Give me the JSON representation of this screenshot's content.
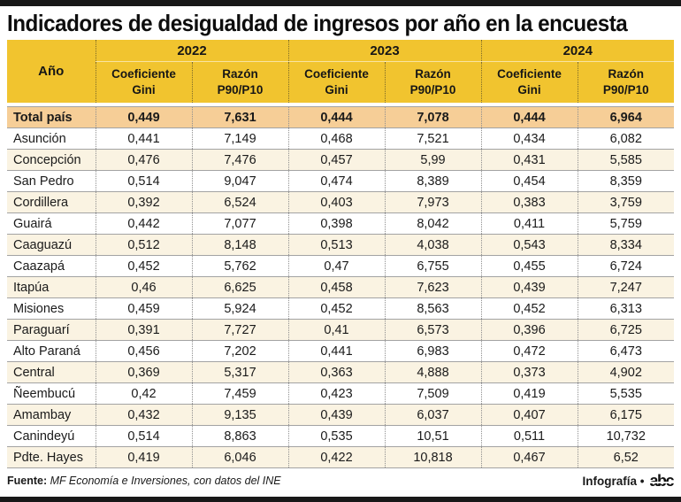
{
  "title": "Indicadores de desigualdad de ingresos por año en la encuesta",
  "table": {
    "year_col_header": "Año",
    "years": [
      "2022",
      "2023",
      "2024"
    ],
    "subheaders": [
      "Coeficiente\nGini",
      "Razón\nP90/P10",
      "Coeficiente\nGini",
      "Razón\nP90/P10",
      "Coeficiente\nGini",
      "Razón\nP90/P10"
    ],
    "total_row": {
      "label": "Total país",
      "values": [
        "0,449",
        "7,631",
        "0,444",
        "7,078",
        "0,444",
        "6,964"
      ]
    },
    "rows": [
      {
        "label": "Asunción",
        "values": [
          "0,441",
          "7,149",
          "0,468",
          "7,521",
          "0,434",
          "6,082"
        ]
      },
      {
        "label": "Concepción",
        "values": [
          "0,476",
          "7,476",
          "0,457",
          "5,99",
          "0,431",
          "5,585"
        ]
      },
      {
        "label": "San Pedro",
        "values": [
          "0,514",
          "9,047",
          "0,474",
          "8,389",
          "0,454",
          "8,359"
        ]
      },
      {
        "label": "Cordillera",
        "values": [
          "0,392",
          "6,524",
          "0,403",
          "7,973",
          "0,383",
          "3,759"
        ]
      },
      {
        "label": "Guairá",
        "values": [
          "0,442",
          "7,077",
          "0,398",
          "8,042",
          "0,411",
          "5,759"
        ]
      },
      {
        "label": "Caaguazú",
        "values": [
          "0,512",
          "8,148",
          "0,513",
          "4,038",
          "0,543",
          "8,334"
        ]
      },
      {
        "label": "Caazapá",
        "values": [
          "0,452",
          "5,762",
          "0,47",
          "6,755",
          "0,455",
          "6,724"
        ]
      },
      {
        "label": "Itapúa",
        "values": [
          "0,46",
          "6,625",
          "0,458",
          "7,623",
          "0,439",
          "7,247"
        ]
      },
      {
        "label": "Misiones",
        "values": [
          "0,459",
          "5,924",
          "0,452",
          "8,563",
          "0,452",
          "6,313"
        ]
      },
      {
        "label": "Paraguarí",
        "values": [
          "0,391",
          "7,727",
          "0,41",
          "6,573",
          "0,396",
          "6,725"
        ]
      },
      {
        "label": "Alto Paraná",
        "values": [
          "0,456",
          "7,202",
          "0,441",
          "6,983",
          "0,472",
          "6,473"
        ]
      },
      {
        "label": "Central",
        "values": [
          "0,369",
          "5,317",
          "0,363",
          "4,888",
          "0,373",
          "4,902"
        ]
      },
      {
        "label": "Ñeembucú",
        "values": [
          "0,42",
          "7,459",
          "0,423",
          "7,509",
          "0,419",
          "5,535"
        ]
      },
      {
        "label": "Amambay",
        "values": [
          "0,432",
          "9,135",
          "0,439",
          "6,037",
          "0,407",
          "6,175"
        ]
      },
      {
        "label": "Canindeyú",
        "values": [
          "0,514",
          "8,863",
          "0,535",
          "10,51",
          "0,511",
          "10,732"
        ]
      },
      {
        "label": "Pdte. Hayes",
        "values": [
          "0,419",
          "6,046",
          "0,422",
          "10,818",
          "0,467",
          "6,52"
        ]
      }
    ]
  },
  "footer": {
    "source_label": "Fuente:",
    "source_text": "MF Economía e Inversiones, con datos del INE",
    "credit": "Infografía •",
    "logo_text": "abc"
  },
  "colors": {
    "header_yellow": "#F1C42F",
    "total_row_bg": "#F6CE97",
    "alt_row_bg": "#FAF3E2",
    "bar_black": "#181818"
  },
  "chart_data": {
    "type": "table",
    "title": "Indicadores de desigualdad de ingresos por año en la encuesta",
    "columns": [
      "Año",
      "2022 Coeficiente Gini",
      "2022 Razón P90/P10",
      "2023 Coeficiente Gini",
      "2023 Razón P90/P10",
      "2024 Coeficiente Gini",
      "2024 Razón P90/P10"
    ],
    "rows": [
      [
        "Total país",
        0.449,
        7.631,
        0.444,
        7.078,
        0.444,
        6.964
      ],
      [
        "Asunción",
        0.441,
        7.149,
        0.468,
        7.521,
        0.434,
        6.082
      ],
      [
        "Concepción",
        0.476,
        7.476,
        0.457,
        5.99,
        0.431,
        5.585
      ],
      [
        "San Pedro",
        0.514,
        9.047,
        0.474,
        8.389,
        0.454,
        8.359
      ],
      [
        "Cordillera",
        0.392,
        6.524,
        0.403,
        7.973,
        0.383,
        3.759
      ],
      [
        "Guairá",
        0.442,
        7.077,
        0.398,
        8.042,
        0.411,
        5.759
      ],
      [
        "Caaguazú",
        0.512,
        8.148,
        0.513,
        4.038,
        0.543,
        8.334
      ],
      [
        "Caazapá",
        0.452,
        5.762,
        0.47,
        6.755,
        0.455,
        6.724
      ],
      [
        "Itapúa",
        0.46,
        6.625,
        0.458,
        7.623,
        0.439,
        7.247
      ],
      [
        "Misiones",
        0.459,
        5.924,
        0.452,
        8.563,
        0.452,
        6.313
      ],
      [
        "Paraguarí",
        0.391,
        7.727,
        0.41,
        6.573,
        0.396,
        6.725
      ],
      [
        "Alto Paraná",
        0.456,
        7.202,
        0.441,
        6.983,
        0.472,
        6.473
      ],
      [
        "Central",
        0.369,
        5.317,
        0.363,
        4.888,
        0.373,
        4.902
      ],
      [
        "Ñeembucú",
        0.42,
        7.459,
        0.423,
        7.509,
        0.419,
        5.535
      ],
      [
        "Amambay",
        0.432,
        9.135,
        0.439,
        6.037,
        0.407,
        6.175
      ],
      [
        "Canindeyú",
        0.514,
        8.863,
        0.535,
        10.51,
        0.511,
        10.732
      ],
      [
        "Pdte. Hayes",
        0.419,
        6.046,
        0.422,
        10.818,
        0.467,
        6.52
      ]
    ],
    "source": "Fuente: MF Economía e Inversiones, con datos del INE"
  }
}
